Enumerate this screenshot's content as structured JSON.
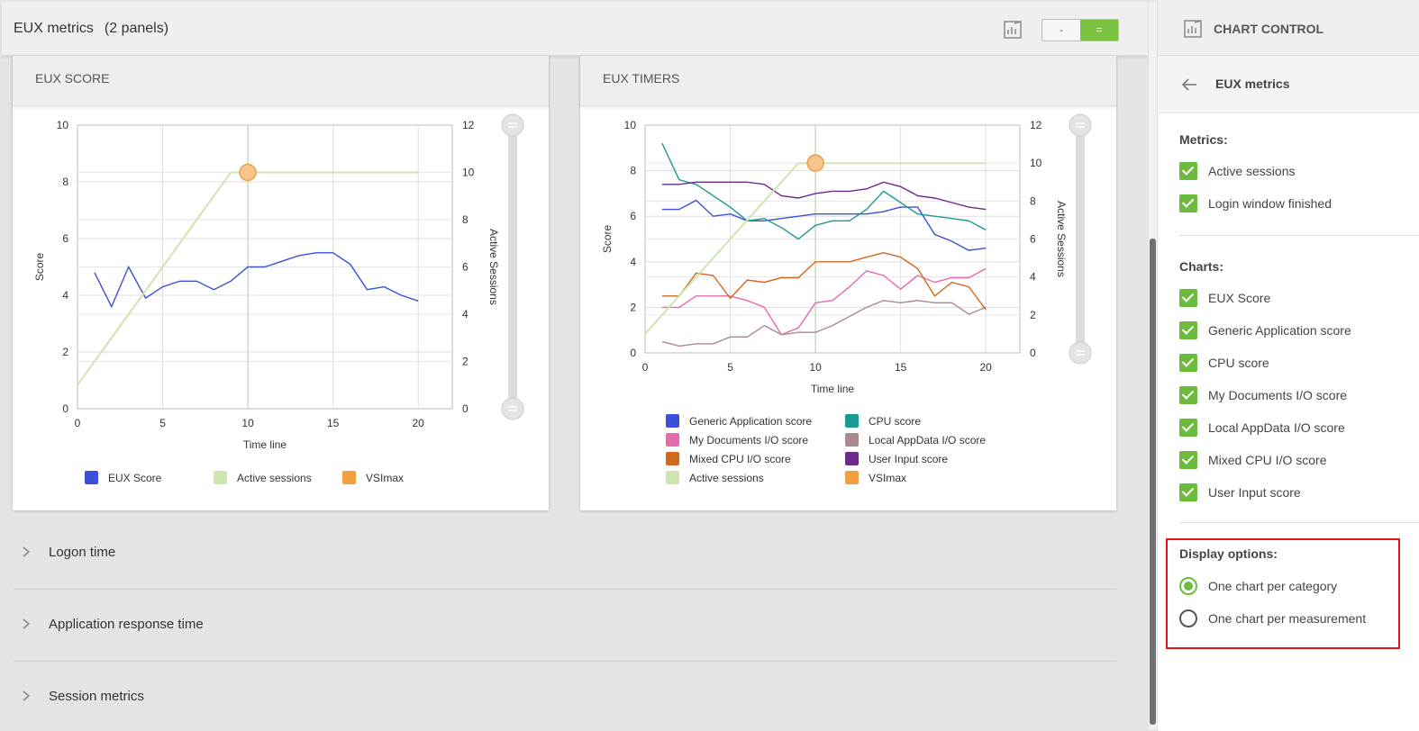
{
  "header": {
    "title": "EUX metrics",
    "panels_count": "(2 panels)",
    "toggle_minus": "-",
    "toggle_equal": "="
  },
  "panel_eux_score": {
    "title": "EUX SCORE"
  },
  "panel_eux_timers": {
    "title": "EUX TIMERS"
  },
  "sections": [
    {
      "label": "Logon time"
    },
    {
      "label": "Application response time"
    },
    {
      "label": "Session metrics"
    }
  ],
  "right_panel": {
    "title": "CHART CONTROL",
    "breadcrumb": "EUX metrics",
    "metrics_title": "Metrics:",
    "metrics": [
      "Active sessions",
      "Login window finished"
    ],
    "charts_title": "Charts:",
    "charts": [
      "EUX Score",
      "Generic Application score",
      "CPU score",
      "My Documents I/O score",
      "Local AppData I/O score",
      "Mixed CPU I/O score",
      "User Input score"
    ],
    "display_title": "Display options:",
    "display_options": [
      {
        "label": "One chart per category",
        "checked": true
      },
      {
        "label": "One chart per measurement",
        "checked": false
      }
    ]
  },
  "colors": {
    "accent_green": "#7cc242",
    "highlight_red": "#e8141c"
  },
  "chart_data": [
    {
      "type": "line",
      "title": "EUX SCORE",
      "xlabel": "Time line",
      "ylabel": "Score",
      "y2label": "Active Sessions",
      "xlim": [
        0,
        22
      ],
      "xticks": [
        0,
        5,
        10,
        15,
        20
      ],
      "ylim": [
        0,
        10
      ],
      "yticks": [
        0,
        2,
        4,
        6,
        8,
        10
      ],
      "y2lim": [
        0,
        12
      ],
      "y2ticks": [
        0,
        2,
        4,
        6,
        8,
        10,
        12
      ],
      "grid": true,
      "legend_position": "bottom",
      "series": [
        {
          "name": "EUX Score",
          "axis": "left",
          "color": "#3c4fd8",
          "x": [
            1,
            2,
            3,
            4,
            5,
            6,
            7,
            8,
            9,
            10,
            11,
            12,
            13,
            14,
            15,
            16,
            17,
            18,
            19,
            20
          ],
          "y": [
            4.8,
            3.6,
            5.0,
            3.9,
            4.3,
            4.5,
            4.5,
            4.2,
            4.5,
            5.0,
            5.0,
            5.2,
            5.4,
            5.5,
            5.5,
            5.1,
            4.2,
            4.3,
            4.0,
            3.8
          ]
        },
        {
          "name": "Active sessions",
          "axis": "right",
          "color": "#cde6b0",
          "x": [
            0,
            9,
            10,
            20
          ],
          "y": [
            1,
            10,
            10,
            10
          ]
        },
        {
          "name": "VSImax",
          "axis": "right",
          "color": "#f0a040",
          "marker": true,
          "x": [
            10
          ],
          "y": [
            10
          ]
        }
      ]
    },
    {
      "type": "line",
      "title": "EUX TIMERS",
      "xlabel": "Time line",
      "ylabel": "Score",
      "y2label": "Active Sessions",
      "xlim": [
        0,
        22
      ],
      "xticks": [
        0,
        5,
        10,
        15,
        20
      ],
      "ylim": [
        0,
        10
      ],
      "yticks": [
        0,
        2,
        4,
        6,
        8,
        10
      ],
      "y2lim": [
        0,
        12
      ],
      "y2ticks": [
        0,
        2,
        4,
        6,
        8,
        10,
        12
      ],
      "grid": true,
      "legend_position": "bottom",
      "series": [
        {
          "name": "Generic Application score",
          "axis": "left",
          "color": "#3c4fd8",
          "x": [
            1,
            2,
            3,
            4,
            5,
            6,
            7,
            8,
            9,
            10,
            11,
            12,
            13,
            14,
            15,
            16,
            17,
            18,
            19,
            20
          ],
          "y": [
            6.3,
            6.3,
            6.7,
            6.0,
            6.1,
            5.8,
            5.8,
            5.9,
            6.0,
            6.1,
            6.1,
            6.1,
            6.1,
            6.2,
            6.4,
            6.4,
            5.2,
            4.9,
            4.5,
            4.6
          ]
        },
        {
          "name": "CPU score",
          "axis": "left",
          "color": "#1a9a90",
          "x": [
            1,
            2,
            3,
            4,
            5,
            6,
            7,
            8,
            9,
            10,
            11,
            12,
            13,
            14,
            15,
            16,
            17,
            18,
            19,
            20
          ],
          "y": [
            9.2,
            7.6,
            7.4,
            6.9,
            6.4,
            5.8,
            5.9,
            5.5,
            5.0,
            5.6,
            5.8,
            5.8,
            6.3,
            7.1,
            6.6,
            6.1,
            6.0,
            5.9,
            5.8,
            5.4
          ]
        },
        {
          "name": "My Documents I/O score",
          "axis": "left",
          "color": "#e86aae",
          "x": [
            1,
            2,
            3,
            4,
            5,
            6,
            7,
            8,
            9,
            10,
            11,
            12,
            13,
            14,
            15,
            16,
            17,
            18,
            19,
            20
          ],
          "y": [
            2.0,
            2.0,
            2.5,
            2.5,
            2.5,
            2.3,
            2.0,
            0.8,
            1.1,
            2.2,
            2.3,
            2.9,
            3.6,
            3.4,
            2.8,
            3.4,
            3.1,
            3.3,
            3.3,
            3.7
          ]
        },
        {
          "name": "Local AppData I/O score",
          "axis": "left",
          "color": "#a98a8a",
          "x": [
            1,
            2,
            3,
            4,
            5,
            6,
            7,
            8,
            9,
            10,
            11,
            12,
            13,
            14,
            15,
            16,
            17,
            18,
            19,
            20
          ],
          "y": [
            0.5,
            0.3,
            0.4,
            0.4,
            0.7,
            0.7,
            1.2,
            0.8,
            0.9,
            0.9,
            1.2,
            1.6,
            2.0,
            2.3,
            2.2,
            2.3,
            2.2,
            2.2,
            1.7,
            2.0
          ]
        },
        {
          "name": "Mixed CPU I/O score",
          "axis": "left",
          "color": "#d2691e",
          "x": [
            1,
            2,
            3,
            4,
            5,
            6,
            7,
            8,
            9,
            10,
            11,
            12,
            13,
            14,
            15,
            16,
            17,
            18,
            19,
            20
          ],
          "y": [
            2.5,
            2.5,
            3.5,
            3.4,
            2.4,
            3.2,
            3.1,
            3.3,
            3.3,
            4.0,
            4.0,
            4.0,
            4.2,
            4.4,
            4.2,
            3.7,
            2.5,
            3.1,
            2.9,
            1.9
          ]
        },
        {
          "name": "User Input score",
          "axis": "left",
          "color": "#6a2a8a",
          "x": [
            1,
            2,
            3,
            4,
            5,
            6,
            7,
            8,
            9,
            10,
            11,
            12,
            13,
            14,
            15,
            16,
            17,
            18,
            19,
            20
          ],
          "y": [
            7.4,
            7.4,
            7.5,
            7.5,
            7.5,
            7.5,
            7.4,
            6.9,
            6.8,
            7.0,
            7.1,
            7.1,
            7.2,
            7.5,
            7.3,
            6.9,
            6.8,
            6.6,
            6.4,
            6.3
          ]
        },
        {
          "name": "Active sessions",
          "axis": "right",
          "color": "#cde6b0",
          "x": [
            0,
            9,
            10,
            20
          ],
          "y": [
            1,
            10,
            10,
            10
          ]
        },
        {
          "name": "VSImax",
          "axis": "right",
          "color": "#f0a040",
          "marker": true,
          "x": [
            10
          ],
          "y": [
            10
          ]
        }
      ]
    }
  ]
}
